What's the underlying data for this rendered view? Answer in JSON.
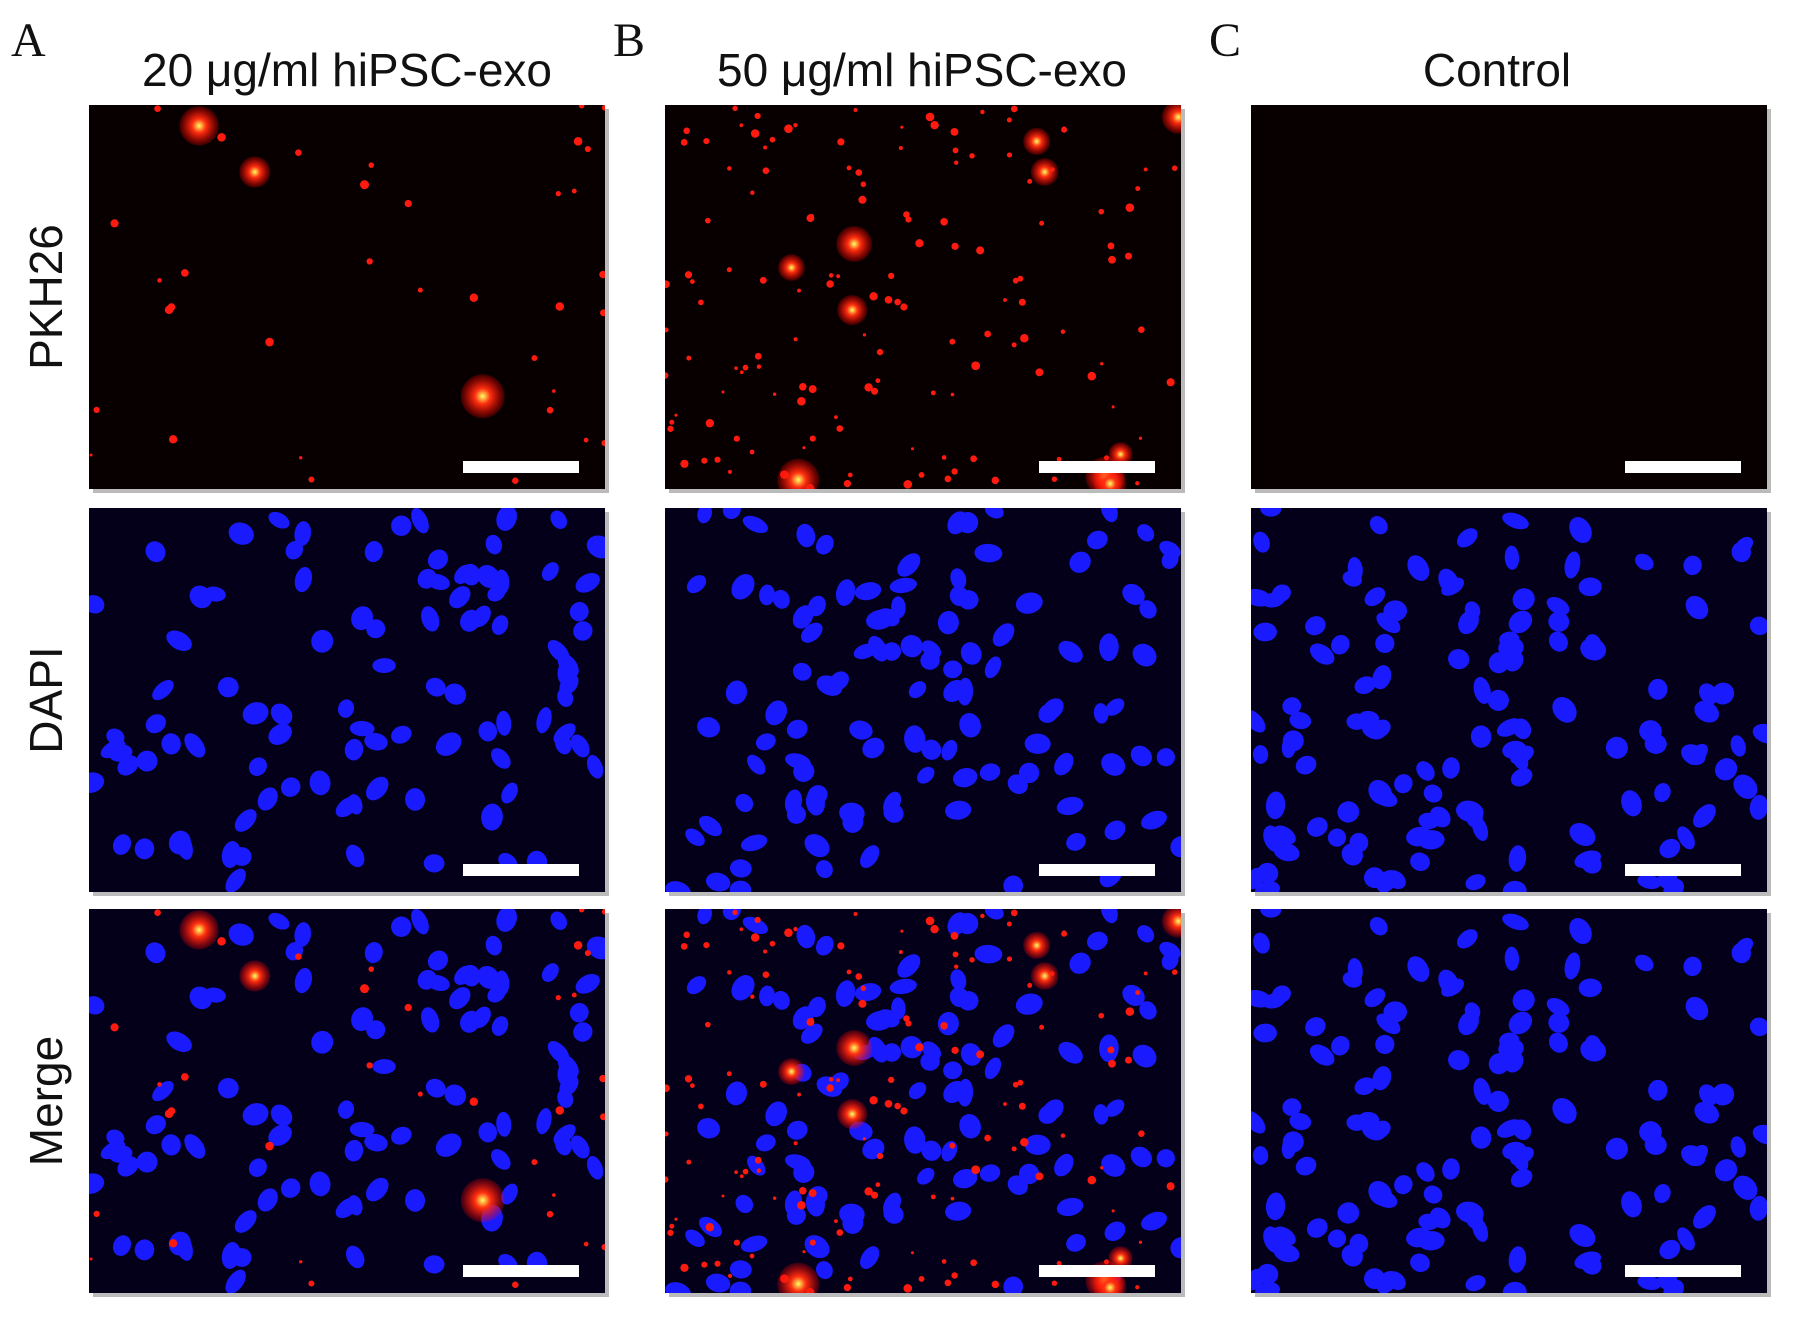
{
  "columns": [
    {
      "letter": "A",
      "title": "20 μg/ml hiPSC-exo"
    },
    {
      "letter": "B",
      "title": "50 μg/ml hiPSC-exo"
    },
    {
      "letter": "C",
      "title": "Control"
    }
  ],
  "rows": [
    "PKH26",
    "DAPI",
    "Merge"
  ]
}
